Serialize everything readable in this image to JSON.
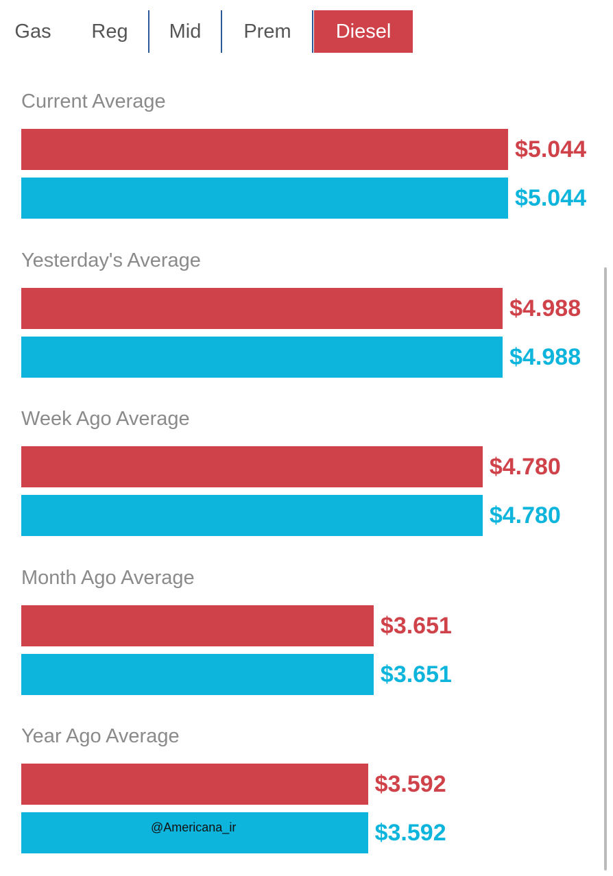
{
  "tabs": [
    "Gas",
    "Reg",
    "Mid",
    "Prem",
    "Diesel"
  ],
  "selected_tab": 4,
  "groups": [
    {
      "label": "Current Average",
      "bars": [
        {
          "value": 5.044,
          "value_label": "$5.044",
          "color": "#d0424a"
        },
        {
          "value": 5.044,
          "value_label": "$5.044",
          "color": "#0db4dc"
        }
      ]
    },
    {
      "label": "Yesterday's Average",
      "bars": [
        {
          "value": 4.988,
          "value_label": "$4.988",
          "color": "#d0424a"
        },
        {
          "value": 4.988,
          "value_label": "$4.988",
          "color": "#0db4dc"
        }
      ]
    },
    {
      "label": "Week Ago Average",
      "bars": [
        {
          "value": 4.78,
          "value_label": "$4.780",
          "color": "#d0424a"
        },
        {
          "value": 4.78,
          "value_label": "$4.780",
          "color": "#0db4dc"
        }
      ]
    },
    {
      "label": "Month Ago Average",
      "bars": [
        {
          "value": 3.651,
          "value_label": "$3.651",
          "color": "#d0424a"
        },
        {
          "value": 3.651,
          "value_label": "$3.651",
          "color": "#0db4dc"
        }
      ]
    },
    {
      "label": "Year Ago Average",
      "bars": [
        {
          "value": 3.592,
          "value_label": "$3.592",
          "color": "#d0424a"
        },
        {
          "value": 3.592,
          "value_label": "$3.592",
          "color": "#0db4dc"
        }
      ]
    }
  ],
  "watermark": "@Americana_ir"
}
